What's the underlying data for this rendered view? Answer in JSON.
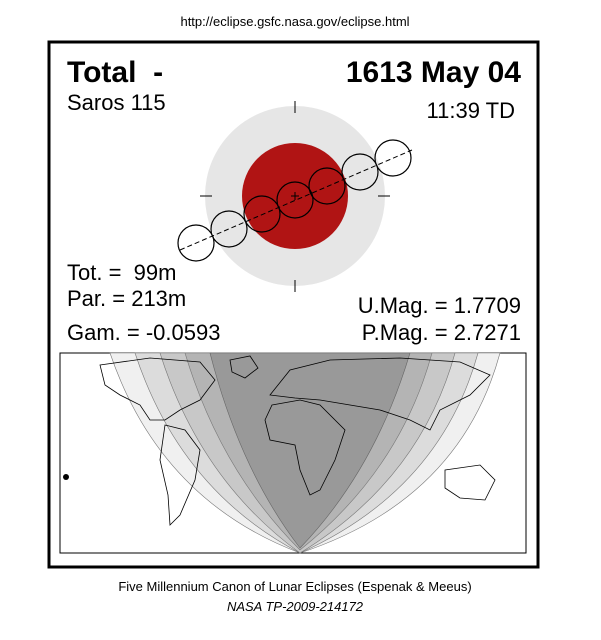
{
  "header": {
    "url": "http://eclipse.gsfc.nasa.gov/eclipse.html"
  },
  "eclipse": {
    "type": "Total  -",
    "date": "1613 May 04",
    "saros": "Saros 115",
    "time": "11:39 TD",
    "tot": "Tot. =  99m",
    "par": "Par. = 213m",
    "gam": "Gam. = -0.0593",
    "umag": "U.Mag. = 1.7709",
    "pmag": "P.Mag. = 2.7271"
  },
  "footer": {
    "line1": "Five Millennium Canon of Lunar Eclipses (Espenak & Meeus)",
    "line2": "NASA TP-2009-214172"
  }
}
